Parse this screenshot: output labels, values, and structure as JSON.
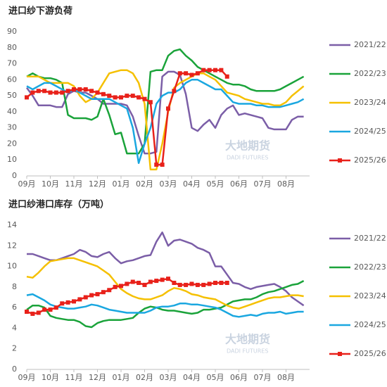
{
  "chart_data": [
    {
      "type": "line",
      "title": "进口纱下游负荷",
      "watermark": "大地期货",
      "watermark_sub": "DADI FUTURES",
      "categories": [
        "09月",
        null,
        null,
        null,
        "10月",
        null,
        null,
        null,
        "11月",
        null,
        null,
        null,
        "12月",
        null,
        null,
        null,
        "01月",
        null,
        null,
        null,
        "02月",
        null,
        null,
        null,
        "03月",
        null,
        null,
        null,
        "04月",
        null,
        null,
        null,
        "05月",
        null,
        null,
        null,
        "06月",
        null,
        null,
        null,
        "07月",
        null,
        null,
        null,
        "08月",
        null,
        null,
        null
      ],
      "ylim": [
        0,
        90
      ],
      "yticks": [
        0,
        10,
        20,
        30,
        40,
        50,
        60,
        70,
        80,
        90
      ],
      "grid": false,
      "legend": "right",
      "series": [
        {
          "name": "2021/22",
          "color": "#7b5ea7",
          "values": [
            55,
            50,
            44,
            44,
            44,
            43,
            43,
            51,
            53,
            52,
            52,
            50,
            48,
            45,
            45,
            45,
            45,
            44,
            37,
            25,
            14,
            14,
            15,
            62,
            65,
            65,
            63,
            51,
            30,
            28,
            32,
            35,
            30,
            38,
            42,
            44,
            38,
            39,
            38,
            37,
            36,
            30,
            29,
            29,
            29,
            35,
            37,
            37
          ]
        },
        {
          "name": "2022/23",
          "color": "#1aa33a",
          "values": [
            62,
            64,
            62,
            61,
            61,
            60,
            58,
            38,
            36,
            36,
            36,
            35,
            37,
            48,
            38,
            26,
            27,
            14,
            14,
            14,
            20,
            65,
            66,
            66,
            75,
            78,
            79,
            75,
            72,
            68,
            66,
            64,
            62,
            60,
            58,
            57,
            57,
            56,
            54,
            53,
            53,
            53,
            53,
            54,
            56,
            58,
            60,
            62
          ]
        },
        {
          "name": "2023/24",
          "color": "#f5c000",
          "values": [
            62,
            62,
            62,
            60,
            58,
            58,
            58,
            58,
            56,
            50,
            46,
            48,
            52,
            58,
            64,
            65,
            66,
            66,
            64,
            58,
            45,
            4,
            4,
            20,
            40,
            55,
            58,
            60,
            62,
            64,
            64,
            62,
            60,
            56,
            52,
            51,
            50,
            48,
            47,
            46,
            45,
            45,
            44,
            44,
            46,
            50,
            53,
            56
          ]
        },
        {
          "name": "2024/25",
          "color": "#1aa7e0",
          "values": [
            56,
            54,
            56,
            58,
            58,
            56,
            54,
            52,
            54,
            52,
            50,
            48,
            48,
            48,
            48,
            46,
            44,
            42,
            30,
            8,
            20,
            30,
            45,
            50,
            52,
            52,
            54,
            58,
            60,
            60,
            58,
            56,
            54,
            54,
            50,
            46,
            45,
            45,
            45,
            44,
            44,
            43,
            43,
            43,
            44,
            45,
            46,
            48
          ]
        },
        {
          "name": "2025/26",
          "color": "#e8211a",
          "marker": "square",
          "values": [
            49,
            52,
            53,
            53,
            52,
            52,
            52,
            53,
            54,
            54,
            54,
            53,
            52,
            51,
            50,
            49,
            49,
            50,
            50,
            49,
            48,
            46,
            7,
            7,
            42,
            53,
            64,
            64,
            63,
            64,
            66,
            66,
            66,
            66,
            62,
            null,
            null,
            null,
            null,
            null,
            null,
            null,
            null,
            null,
            null,
            null,
            null,
            null
          ]
        }
      ]
    },
    {
      "type": "line",
      "title": "进口纱港口库存（万吨）",
      "watermark": "大地期货",
      "watermark_sub": "DADI FUTURES",
      "categories": [
        "09月",
        null,
        null,
        null,
        "10月",
        null,
        null,
        null,
        "11月",
        null,
        null,
        null,
        "12月",
        null,
        null,
        null,
        "01月",
        null,
        null,
        null,
        "02月",
        null,
        null,
        null,
        "03月",
        null,
        null,
        null,
        "04月",
        null,
        null,
        null,
        "05月",
        null,
        null,
        null,
        "06月",
        null,
        null,
        null,
        "07月",
        null,
        null,
        null,
        "08月",
        null,
        null,
        null
      ],
      "ylim": [
        0,
        14
      ],
      "yticks": [
        0,
        2,
        4,
        6,
        8,
        10,
        12,
        14
      ],
      "grid": false,
      "legend": "right",
      "series": [
        {
          "name": "2021/22",
          "color": "#7b5ea7",
          "values": [
            11.2,
            11.2,
            11,
            10.8,
            10.6,
            10.6,
            10.8,
            11,
            11.2,
            11.6,
            11.4,
            11,
            10.9,
            11.2,
            11.4,
            10.8,
            10.3,
            10.5,
            10.6,
            10.8,
            11,
            11.1,
            12.4,
            13.3,
            12,
            12.5,
            12.6,
            12.4,
            12.2,
            11.8,
            11.6,
            11.3,
            10,
            10,
            9.2,
            8.4,
            8.3,
            8,
            7.8,
            8,
            8.1,
            8.2,
            8.3,
            8,
            7.6,
            7,
            6.6,
            6.2
          ]
        },
        {
          "name": "2022/23",
          "color": "#1aa33a",
          "values": [
            5.8,
            6.2,
            6.2,
            6,
            5.2,
            5,
            4.9,
            4.8,
            4.8,
            4.6,
            4.2,
            4.1,
            4.5,
            4.7,
            4.8,
            4.8,
            4.8,
            4.9,
            5,
            5.5,
            5.9,
            6.1,
            6,
            5.8,
            5.7,
            5.7,
            5.6,
            5.5,
            5.4,
            5.5,
            5.8,
            5.8,
            5.9,
            6,
            6.3,
            6.6,
            6.7,
            6.8,
            6.8,
            7,
            7.3,
            7.5,
            7.6,
            7.8,
            8,
            8.2,
            8.3,
            8.6
          ]
        },
        {
          "name": "2023/24",
          "color": "#f5c000",
          "values": [
            9,
            8.9,
            9.4,
            10,
            10.5,
            10.6,
            10.7,
            10.8,
            10.8,
            10.6,
            10.4,
            10.2,
            10,
            9.6,
            9.2,
            8.5,
            7.8,
            7.4,
            7.1,
            6.9,
            6.8,
            6.8,
            7,
            7.2,
            7.6,
            7.9,
            7.8,
            7.6,
            7.3,
            7.2,
            7,
            6.9,
            6.8,
            6.5,
            6.2,
            6,
            5.9,
            6.1,
            6.3,
            6.5,
            6.7,
            6.9,
            7,
            7,
            7.1,
            7.2,
            7.2,
            7.1
          ]
        },
        {
          "name": "2024/25",
          "color": "#1aa7e0",
          "values": [
            7.2,
            7.3,
            7,
            6.7,
            6.3,
            6.1,
            6,
            5.9,
            5.9,
            6,
            6.1,
            6.3,
            6.2,
            6,
            5.8,
            5.7,
            5.6,
            5.5,
            5.5,
            5.5,
            5.5,
            5.7,
            6,
            6.1,
            6.1,
            6.2,
            6.4,
            6.4,
            6.3,
            6.3,
            6.2,
            6.1,
            6,
            5.8,
            5.5,
            5.2,
            5.1,
            5.2,
            5.3,
            5.2,
            5.4,
            5.5,
            5.5,
            5.6,
            5.4,
            5.5,
            5.6,
            5.6
          ]
        },
        {
          "name": "2025/26",
          "color": "#e8211a",
          "marker": "square",
          "values": [
            5.6,
            5.4,
            5.5,
            5.8,
            5.8,
            6,
            6.4,
            6.5,
            6.6,
            6.8,
            7,
            7.2,
            7.3,
            7.5,
            7.7,
            8,
            8.1,
            8.3,
            8.5,
            8.4,
            8.2,
            8.5,
            8.6,
            8.7,
            8.8,
            8.4,
            8.2,
            8.2,
            8.3,
            8.2,
            8.2,
            8.3,
            8.4,
            8.4,
            8.4,
            null,
            null,
            null,
            null,
            null,
            null,
            null,
            null,
            null,
            null,
            null,
            null,
            null
          ]
        }
      ]
    }
  ]
}
